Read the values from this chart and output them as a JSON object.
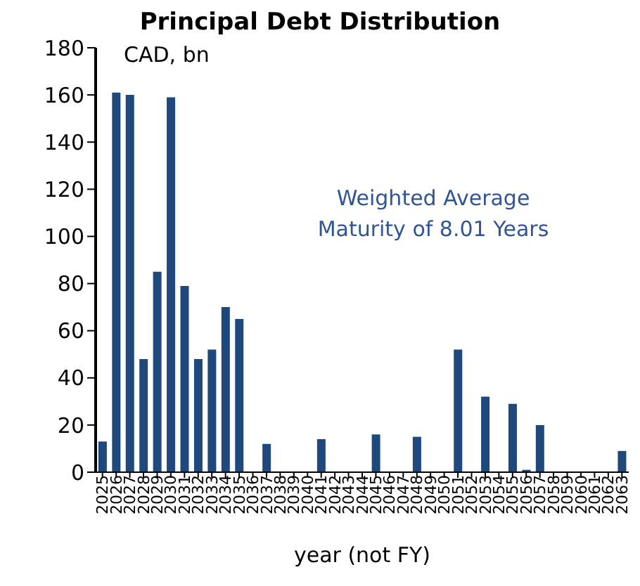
{
  "chart_data": {
    "type": "bar",
    "title": "Principal Debt Distribution",
    "ylabel": "CAD, bn",
    "xlabel": "year (not FY)",
    "annotations": [
      "Weighted Average Maturity of 8.01 Years"
    ],
    "categories": [
      "2025",
      "2026",
      "2027",
      "2028",
      "2029",
      "2030",
      "2031",
      "2032",
      "2033",
      "2034",
      "2035",
      "2036",
      "2037",
      "2038",
      "2039",
      "2040",
      "2041",
      "2042",
      "2043",
      "2044",
      "2045",
      "2046",
      "2047",
      "2048",
      "2049",
      "2050",
      "2051",
      "2052",
      "2053",
      "2054",
      "2055",
      "2056",
      "2057",
      "2058",
      "2059",
      "2060",
      "2061",
      "2062",
      "2063"
    ],
    "values": [
      13,
      161,
      160,
      48,
      85,
      159,
      79,
      48,
      52,
      70,
      65,
      0,
      12,
      0,
      0,
      0,
      14,
      0,
      0,
      0,
      16,
      0,
      0,
      15,
      0,
      0,
      52,
      0,
      32,
      0,
      29,
      1,
      20,
      0,
      0,
      0,
      0,
      0,
      9
    ],
    "color": "#1f497d",
    "ylim": [
      0,
      180
    ],
    "yticks": [
      0,
      20,
      40,
      60,
      80,
      100,
      120,
      140,
      160,
      180
    ],
    "grid": false,
    "legend": false
  }
}
